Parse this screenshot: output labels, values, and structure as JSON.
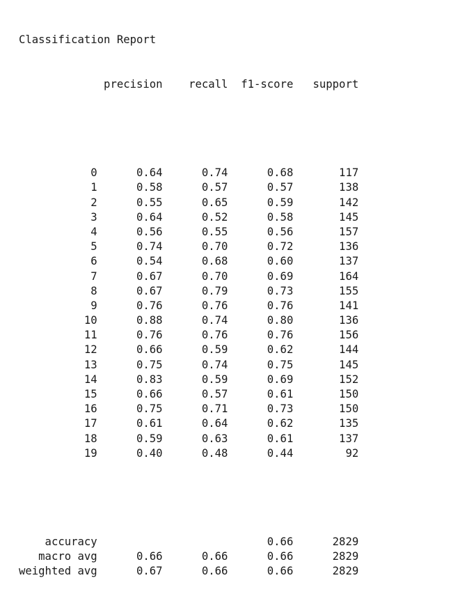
{
  "report": {
    "title": "Classification Report",
    "headers": [
      "precision",
      "recall",
      "f1-score",
      "support"
    ],
    "rows": [
      {
        "label": "0",
        "precision": "0.64",
        "recall": "0.74",
        "f1_score": "0.68",
        "support": "117"
      },
      {
        "label": "1",
        "precision": "0.58",
        "recall": "0.57",
        "f1_score": "0.57",
        "support": "138"
      },
      {
        "label": "2",
        "precision": "0.55",
        "recall": "0.65",
        "f1_score": "0.59",
        "support": "142"
      },
      {
        "label": "3",
        "precision": "0.64",
        "recall": "0.52",
        "f1_score": "0.58",
        "support": "145"
      },
      {
        "label": "4",
        "precision": "0.56",
        "recall": "0.55",
        "f1_score": "0.56",
        "support": "157"
      },
      {
        "label": "5",
        "precision": "0.74",
        "recall": "0.70",
        "f1_score": "0.72",
        "support": "136"
      },
      {
        "label": "6",
        "precision": "0.54",
        "recall": "0.68",
        "f1_score": "0.60",
        "support": "137"
      },
      {
        "label": "7",
        "precision": "0.67",
        "recall": "0.70",
        "f1_score": "0.69",
        "support": "164"
      },
      {
        "label": "8",
        "precision": "0.67",
        "recall": "0.79",
        "f1_score": "0.73",
        "support": "155"
      },
      {
        "label": "9",
        "precision": "0.76",
        "recall": "0.76",
        "f1_score": "0.76",
        "support": "141"
      },
      {
        "label": "10",
        "precision": "0.88",
        "recall": "0.74",
        "f1_score": "0.80",
        "support": "136"
      },
      {
        "label": "11",
        "precision": "0.76",
        "recall": "0.76",
        "f1_score": "0.76",
        "support": "156"
      },
      {
        "label": "12",
        "precision": "0.66",
        "recall": "0.59",
        "f1_score": "0.62",
        "support": "144"
      },
      {
        "label": "13",
        "precision": "0.75",
        "recall": "0.74",
        "f1_score": "0.75",
        "support": "145"
      },
      {
        "label": "14",
        "precision": "0.83",
        "recall": "0.59",
        "f1_score": "0.69",
        "support": "152"
      },
      {
        "label": "15",
        "precision": "0.66",
        "recall": "0.57",
        "f1_score": "0.61",
        "support": "150"
      },
      {
        "label": "16",
        "precision": "0.75",
        "recall": "0.71",
        "f1_score": "0.73",
        "support": "150"
      },
      {
        "label": "17",
        "precision": "0.61",
        "recall": "0.64",
        "f1_score": "0.62",
        "support": "135"
      },
      {
        "label": "18",
        "precision": "0.59",
        "recall": "0.63",
        "f1_score": "0.61",
        "support": "137"
      },
      {
        "label": "19",
        "precision": "0.40",
        "recall": "0.48",
        "f1_score": "0.44",
        "support": "92"
      }
    ],
    "summary": [
      {
        "label": "accuracy",
        "precision": "",
        "recall": "",
        "f1_score": "0.66",
        "support": "2829"
      },
      {
        "label": "macro avg",
        "precision": "0.66",
        "recall": "0.66",
        "f1_score": "0.66",
        "support": "2829"
      },
      {
        "label": "weighted avg",
        "precision": "0.67",
        "recall": "0.66",
        "f1_score": "0.66",
        "support": "2829"
      }
    ]
  }
}
